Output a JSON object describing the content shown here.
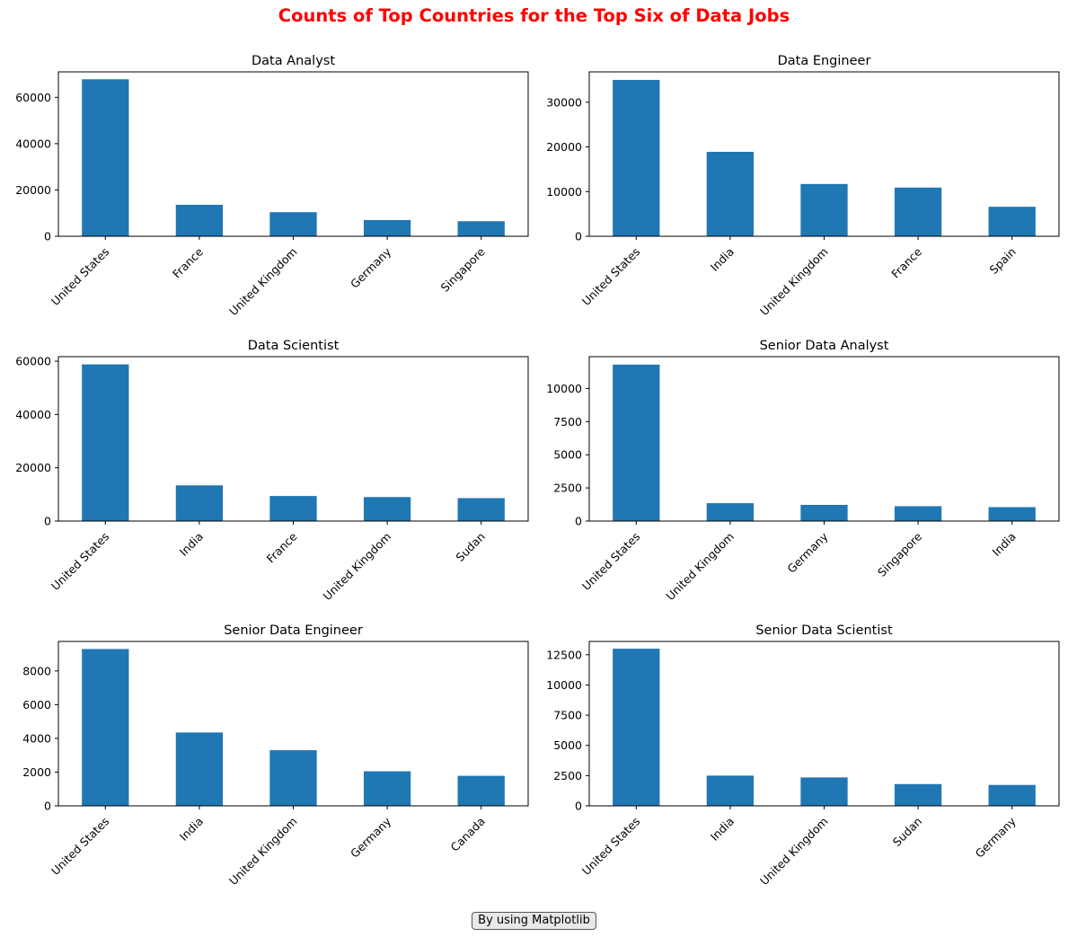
{
  "figure": {
    "suptitle": "Counts of Top Countries for the Top Six of Data Jobs",
    "suptitle_color": "#ff0000",
    "bar_color": "#1f77b4",
    "footer_note": "By using Matplotlib"
  },
  "chart_data": [
    {
      "type": "bar",
      "title": "Data Analyst",
      "categories": [
        "United States",
        "France",
        "United Kingdom",
        "Germany",
        "Singapore"
      ],
      "values": [
        67800,
        13600,
        10400,
        7000,
        6500
      ],
      "ylim": [
        0,
        71000
      ],
      "yticks": [
        0,
        20000,
        40000,
        60000
      ],
      "ytick_labels": [
        "0",
        "20000",
        "40000",
        "60000"
      ],
      "xlabel": "",
      "ylabel": "",
      "grid": false
    },
    {
      "type": "bar",
      "title": "Data Engineer",
      "categories": [
        "United States",
        "India",
        "United Kingdom",
        "France",
        "Spain"
      ],
      "values": [
        35000,
        18900,
        11700,
        10900,
        6600
      ],
      "ylim": [
        0,
        36800
      ],
      "yticks": [
        0,
        10000,
        20000,
        30000
      ],
      "ytick_labels": [
        "0",
        "10000",
        "20000",
        "30000"
      ],
      "xlabel": "",
      "ylabel": "",
      "grid": false
    },
    {
      "type": "bar",
      "title": "Data Scientist",
      "categories": [
        "United States",
        "India",
        "France",
        "United Kingdom",
        "Sudan"
      ],
      "values": [
        58800,
        13400,
        9400,
        9000,
        8600
      ],
      "ylim": [
        0,
        61700
      ],
      "yticks": [
        0,
        20000,
        40000,
        60000
      ],
      "ytick_labels": [
        "0",
        "20000",
        "40000",
        "60000"
      ],
      "xlabel": "",
      "ylabel": "",
      "grid": false
    },
    {
      "type": "bar",
      "title": "Senior Data Analyst",
      "categories": [
        "United States",
        "United Kingdom",
        "Germany",
        "Singapore",
        "India"
      ],
      "values": [
        11800,
        1350,
        1220,
        1120,
        1050
      ],
      "ylim": [
        0,
        12400
      ],
      "yticks": [
        0,
        2500,
        5000,
        7500,
        10000
      ],
      "ytick_labels": [
        "0",
        "2500",
        "5000",
        "7500",
        "10000"
      ],
      "xlabel": "",
      "ylabel": "",
      "grid": false
    },
    {
      "type": "bar",
      "title": "Senior Data Engineer",
      "categories": [
        "United States",
        "India",
        "United Kingdom",
        "Germany",
        "Canada"
      ],
      "values": [
        9300,
        4350,
        3300,
        2050,
        1780
      ],
      "ylim": [
        0,
        9750
      ],
      "yticks": [
        0,
        2000,
        4000,
        6000,
        8000
      ],
      "ytick_labels": [
        "0",
        "2000",
        "4000",
        "6000",
        "8000"
      ],
      "xlabel": "",
      "ylabel": "",
      "grid": false
    },
    {
      "type": "bar",
      "title": "Senior Data Scientist",
      "categories": [
        "United States",
        "India",
        "United Kingdom",
        "Sudan",
        "Germany"
      ],
      "values": [
        13000,
        2500,
        2350,
        1800,
        1730
      ],
      "ylim": [
        0,
        13600
      ],
      "yticks": [
        0,
        2500,
        5000,
        7500,
        10000,
        12500
      ],
      "ytick_labels": [
        "0",
        "2500",
        "5000",
        "7500",
        "10000",
        "12500"
      ],
      "xlabel": "",
      "ylabel": "",
      "grid": false
    }
  ]
}
